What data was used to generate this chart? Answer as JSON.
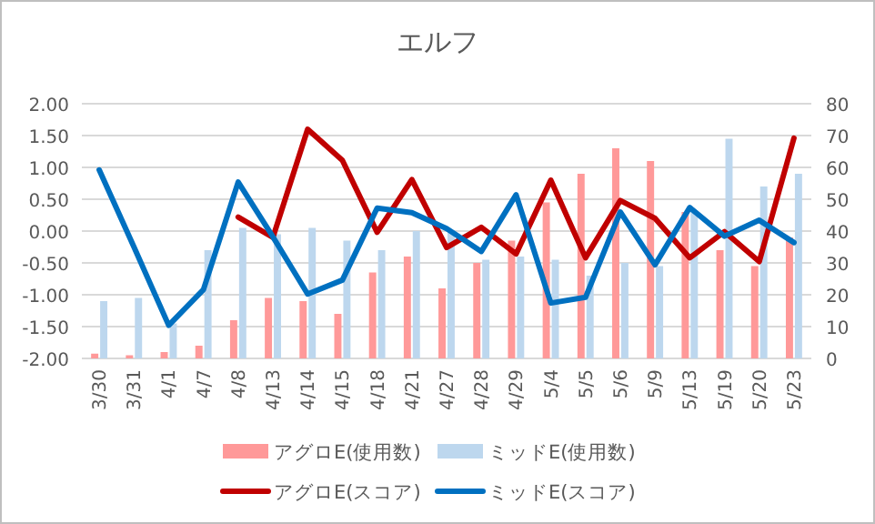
{
  "chart_data": {
    "type": "bar",
    "title": "エルフ",
    "categories": [
      "3/30",
      "3/31",
      "4/1",
      "4/7",
      "4/8",
      "4/13",
      "4/14",
      "4/15",
      "4/18",
      "4/21",
      "4/27",
      "4/28",
      "4/29",
      "5/4",
      "5/5",
      "5/6",
      "5/9",
      "5/13",
      "5/19",
      "5/20",
      "5/23"
    ],
    "series": [
      {
        "name": "アグロE(使用数)",
        "axis": "y2",
        "color": "#ff9999",
        "values": [
          1.5,
          1,
          2,
          4,
          12,
          19,
          18,
          14,
          27,
          32,
          22,
          30,
          37,
          49,
          58,
          66,
          62,
          46,
          34,
          29,
          38
        ]
      },
      {
        "name": "ミッドE(使用数)",
        "axis": "y2",
        "color": "#bdd7ee",
        "values": [
          18,
          19,
          11,
          34,
          41,
          39,
          41,
          37,
          34,
          40,
          40,
          31,
          32,
          31,
          26,
          30,
          29,
          46,
          69,
          54,
          58
        ]
      },
      {
        "name": "アグロE(スコア)",
        "type": "line",
        "color": "#c00000",
        "values": [
          null,
          null,
          null,
          null,
          0.22,
          -0.1,
          1.6,
          1.11,
          -0.02,
          0.81,
          -0.26,
          0.06,
          -0.36,
          0.8,
          -0.42,
          0.48,
          0.2,
          -0.42,
          -0.01,
          -0.48,
          1.46
        ]
      },
      {
        "name": "ミッドE(スコア)",
        "type": "line",
        "color": "#0070c0",
        "values": [
          0.96,
          -0.25,
          -1.48,
          -0.92,
          0.77,
          -0.09,
          -0.99,
          -0.77,
          0.36,
          0.29,
          0.04,
          -0.32,
          0.57,
          -1.13,
          -1.04,
          0.3,
          -0.53,
          0.37,
          -0.08,
          0.17,
          -0.18
        ]
      }
    ],
    "ylim": [
      -2,
      2
    ],
    "yticks": [
      {
        "value": -2,
        "label": "-2.00"
      },
      {
        "value": -1.5,
        "label": "-1.50"
      },
      {
        "value": -1,
        "label": "-1.00"
      },
      {
        "value": -0.5,
        "label": "-0.50"
      },
      {
        "value": 0,
        "label": "0.00"
      },
      {
        "value": 0.5,
        "label": "0.50"
      },
      {
        "value": 1,
        "label": "1.00"
      },
      {
        "value": 1.5,
        "label": "1.50"
      },
      {
        "value": 2,
        "label": "2.00"
      }
    ],
    "y2lim": [
      0,
      80
    ],
    "y2ticks": [
      0,
      10,
      20,
      30,
      40,
      50,
      60,
      70,
      80
    ],
    "grid": "y",
    "legend": "bottom",
    "marker": "none"
  }
}
